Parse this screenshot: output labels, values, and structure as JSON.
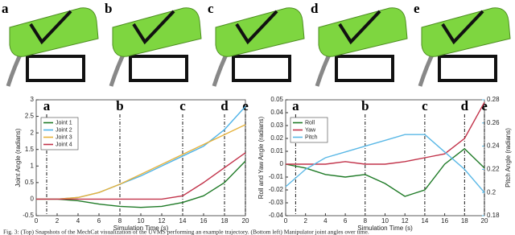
{
  "panels": [
    {
      "label": "a"
    },
    {
      "label": "b"
    },
    {
      "label": "c"
    },
    {
      "label": "d"
    },
    {
      "label": "e"
    }
  ],
  "chart_data": [
    {
      "type": "line",
      "xlabel": "Simulation Time (s)",
      "ylabel": "Joint Angle (radians)",
      "x": [
        0,
        2,
        4,
        6,
        8,
        10,
        12,
        14,
        16,
        18,
        20
      ],
      "xlim": [
        0,
        20
      ],
      "xticks": [
        0,
        2,
        4,
        6,
        8,
        10,
        12,
        14,
        16,
        18,
        20
      ],
      "ylim": [
        -0.5,
        3
      ],
      "yticks": [
        -0.5,
        0,
        0.5,
        1,
        1.5,
        2,
        2.5,
        3
      ],
      "legend": "upper-left",
      "markers": [
        {
          "label": "a",
          "x": 1
        },
        {
          "label": "b",
          "x": 8
        },
        {
          "label": "c",
          "x": 14
        },
        {
          "label": "d",
          "x": 18
        },
        {
          "label": "e",
          "x": 20
        }
      ],
      "series": [
        {
          "name": "Joint 1",
          "color": "#1e7a26",
          "values": [
            0,
            0,
            -0.05,
            -0.15,
            -0.22,
            -0.25,
            -0.22,
            -0.1,
            0.1,
            0.5,
            1.15
          ]
        },
        {
          "name": "Joint 2",
          "color": "#4fb3e8",
          "values": [
            0,
            0,
            0.05,
            0.2,
            0.45,
            0.7,
            1.0,
            1.3,
            1.6,
            2.1,
            2.8
          ]
        },
        {
          "name": "Joint 3",
          "color": "#e6b23c",
          "values": [
            0,
            0,
            0.05,
            0.2,
            0.45,
            0.75,
            1.05,
            1.35,
            1.65,
            1.95,
            2.25
          ]
        },
        {
          "name": "Joint 4",
          "color": "#c2334a",
          "values": [
            0,
            0,
            0,
            0,
            0,
            0,
            0,
            0.1,
            0.5,
            0.95,
            1.4
          ]
        }
      ]
    },
    {
      "type": "line",
      "xlabel": "Simulation Time (s)",
      "ylabel": "Roll and Yaw Angle (radians)",
      "y2label": "Pitch Angle (radians)",
      "x": [
        0,
        2,
        4,
        6,
        8,
        10,
        12,
        14,
        16,
        18,
        20
      ],
      "xlim": [
        0,
        20
      ],
      "xticks": [
        0,
        2,
        4,
        6,
        8,
        10,
        12,
        14,
        16,
        18,
        20
      ],
      "ylim": [
        -0.04,
        0.05
      ],
      "yticks": [
        -0.04,
        -0.03,
        -0.02,
        -0.01,
        0,
        0.01,
        0.02,
        0.03,
        0.04,
        0.05
      ],
      "y2lim": [
        0.18,
        0.28
      ],
      "y2ticks": [
        0.18,
        0.2,
        0.22,
        0.24,
        0.26,
        0.28
      ],
      "legend": "upper-left",
      "markers": [
        {
          "label": "a",
          "x": 1
        },
        {
          "label": "b",
          "x": 8
        },
        {
          "label": "c",
          "x": 14
        },
        {
          "label": "d",
          "x": 18
        },
        {
          "label": "e",
          "x": 20
        }
      ],
      "series": [
        {
          "name": "Roll",
          "color": "#1e7a26",
          "values": [
            0,
            -0.003,
            -0.008,
            -0.01,
            -0.008,
            -0.015,
            -0.025,
            -0.02,
            0.0,
            0.012,
            -0.003
          ]
        },
        {
          "name": "Yaw",
          "color": "#c2334a",
          "values": [
            0,
            0,
            0,
            0.002,
            0,
            0,
            0.002,
            0.005,
            0.008,
            0.02,
            0.048
          ]
        },
        {
          "name": "Pitch",
          "color": "#5ab8e6",
          "axis": "y2",
          "values": [
            0.205,
            0.22,
            0.23,
            0.235,
            0.24,
            0.245,
            0.25,
            0.25,
            0.235,
            0.22,
            0.2
          ]
        }
      ]
    }
  ],
  "caption": "Fig. 3: (Top) Snapshots of the MechCat visualization of the UVMS performing an example trajectory. (Bottom left) Manipulator joint angles over time."
}
